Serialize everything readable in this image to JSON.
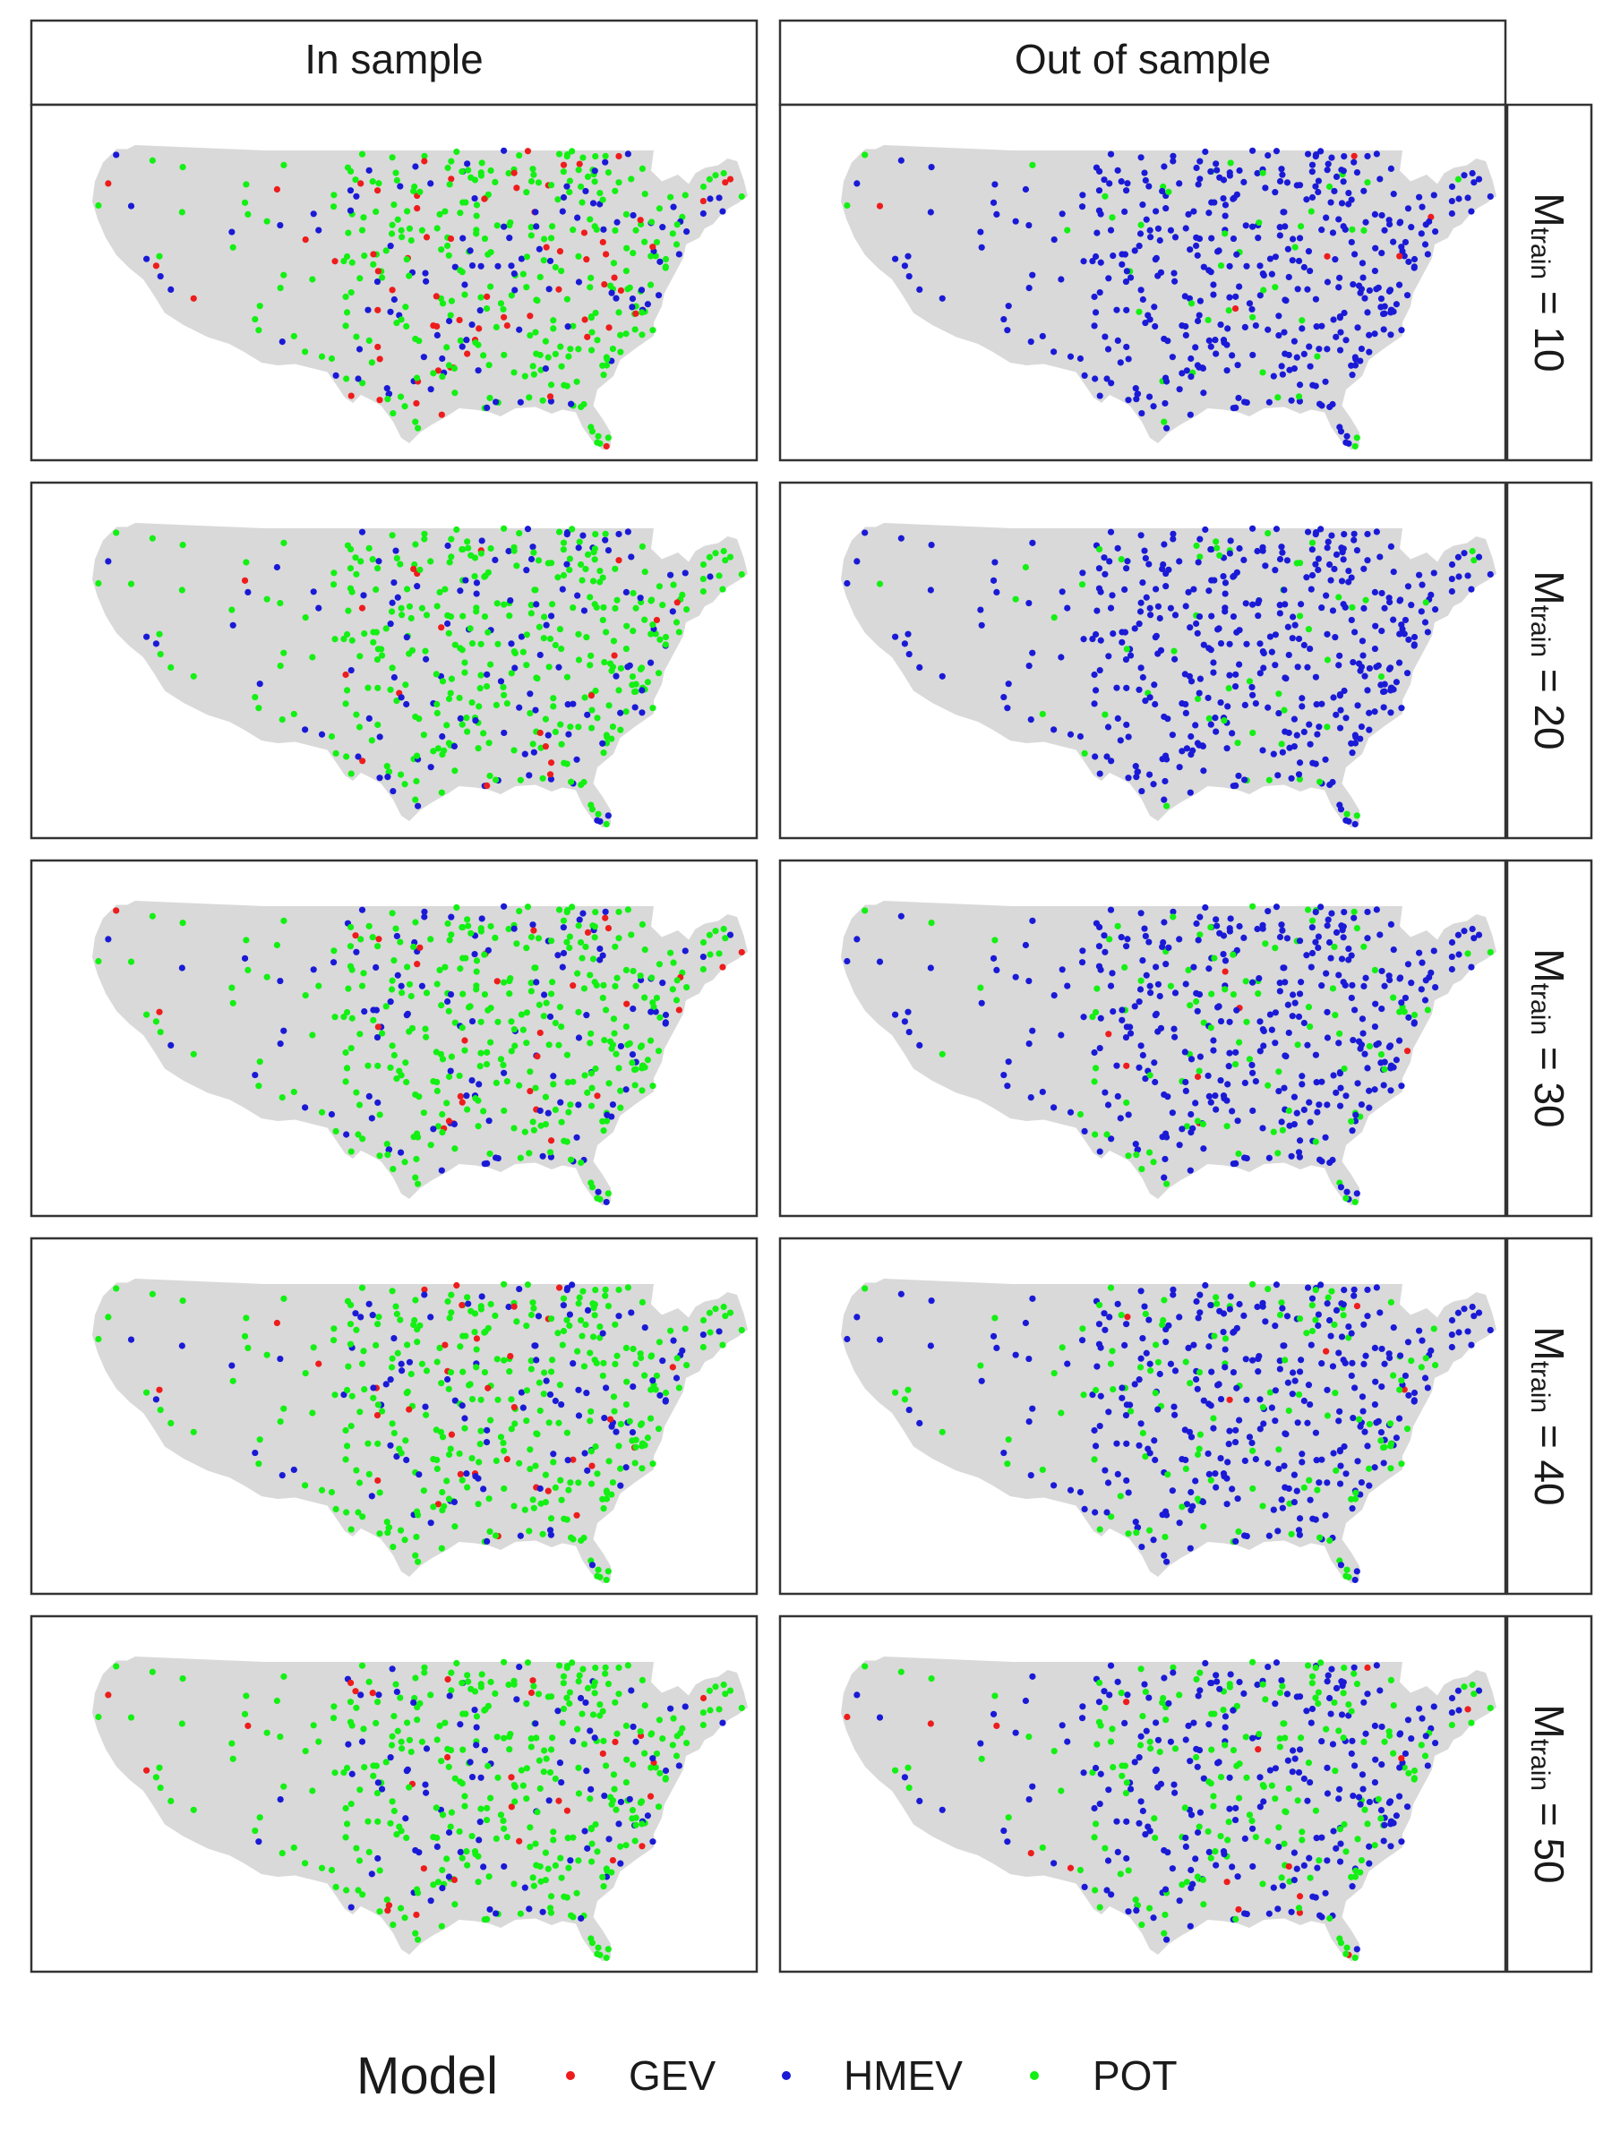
{
  "chart_data": {
    "type": "scatter",
    "facets": {
      "columns": [
        "In sample",
        "Out of sample"
      ],
      "rows": [
        "10",
        "20",
        "30",
        "40",
        "50"
      ],
      "row_label_symbol": "M",
      "row_label_subscript": "train",
      "row_label_operator": "="
    },
    "legend": {
      "title": "Model",
      "position": "bottom",
      "entries": [
        {
          "name": "GEV",
          "color": "#ee1c1c"
        },
        {
          "name": "HMEV",
          "color": "#1a1ad6"
        },
        {
          "name": "POT",
          "color": "#13f013"
        }
      ]
    },
    "grid": false,
    "map_background": "#d9d9d9",
    "panels": [
      {
        "column": "In sample",
        "row": "10",
        "model_share": {
          "GEV": 0.13,
          "HMEV": 0.25,
          "POT": 0.62
        }
      },
      {
        "column": "Out of sample",
        "row": "10",
        "model_share": {
          "GEV": 0.01,
          "HMEV": 0.9,
          "POT": 0.09
        }
      },
      {
        "column": "In sample",
        "row": "20",
        "model_share": {
          "GEV": 0.05,
          "HMEV": 0.27,
          "POT": 0.68
        }
      },
      {
        "column": "Out of sample",
        "row": "20",
        "model_share": {
          "GEV": 0.005,
          "HMEV": 0.875,
          "POT": 0.12
        }
      },
      {
        "column": "In sample",
        "row": "30",
        "model_share": {
          "GEV": 0.07,
          "HMEV": 0.26,
          "POT": 0.67
        }
      },
      {
        "column": "Out of sample",
        "row": "30",
        "model_share": {
          "GEV": 0.01,
          "HMEV": 0.8,
          "POT": 0.19
        }
      },
      {
        "column": "In sample",
        "row": "40",
        "model_share": {
          "GEV": 0.08,
          "HMEV": 0.2,
          "POT": 0.72
        }
      },
      {
        "column": "Out of sample",
        "row": "40",
        "model_share": {
          "GEV": 0.02,
          "HMEV": 0.72,
          "POT": 0.26
        }
      },
      {
        "column": "In sample",
        "row": "50",
        "model_share": {
          "GEV": 0.06,
          "HMEV": 0.22,
          "POT": 0.72
        }
      },
      {
        "column": "Out of sample",
        "row": "50",
        "model_share": {
          "GEV": 0.03,
          "HMEV": 0.57,
          "POT": 0.4
        }
      }
    ]
  }
}
